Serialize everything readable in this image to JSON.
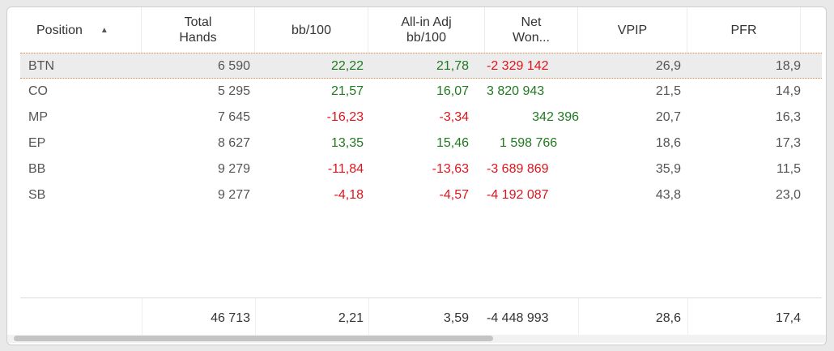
{
  "columns": {
    "position": "Position",
    "total_hands": "Total Hands",
    "bb100": "bb/100",
    "allin_adj": "All-in Adj bb/100",
    "net_won": "Net Won...",
    "vpip": "VPIP",
    "pfr": "PFR"
  },
  "sort_icon": "sort-ascending-icon",
  "rows": [
    {
      "position": "BTN",
      "total_hands": "6 590",
      "bb100": "22,22",
      "allin_adj": "21,78",
      "net_won": "-2 329 142",
      "vpip": "26,9",
      "pfr": "18,9"
    },
    {
      "position": "CO",
      "total_hands": "5 295",
      "bb100": "21,57",
      "allin_adj": "16,07",
      "net_won": "3 820 943",
      "vpip": "21,5",
      "pfr": "14,9"
    },
    {
      "position": "MP",
      "total_hands": "7 645",
      "bb100": "-16,23",
      "allin_adj": "-3,34",
      "net_won": "342 396",
      "vpip": "20,7",
      "pfr": "16,3"
    },
    {
      "position": "EP",
      "total_hands": "8 627",
      "bb100": "13,35",
      "allin_adj": "15,46",
      "net_won": "1 598 766",
      "vpip": "18,6",
      "pfr": "17,3"
    },
    {
      "position": "BB",
      "total_hands": "9 279",
      "bb100": "-11,84",
      "allin_adj": "-13,63",
      "net_won": "-3 689 869",
      "vpip": "35,9",
      "pfr": "11,5"
    },
    {
      "position": "SB",
      "total_hands": "9 277",
      "bb100": "-4,18",
      "allin_adj": "-4,57",
      "net_won": "-4 192 087",
      "vpip": "43,8",
      "pfr": "23,0"
    }
  ],
  "totals": {
    "total_hands": "46 713",
    "bb100": "2,21",
    "allin_adj": "3,59",
    "net_won": "-4 448 993",
    "vpip": "28,6",
    "pfr": "17,4"
  },
  "colors": {
    "positive": "#1f7a1f",
    "negative": "#e0141c",
    "selection_border": "#e08a4a"
  }
}
